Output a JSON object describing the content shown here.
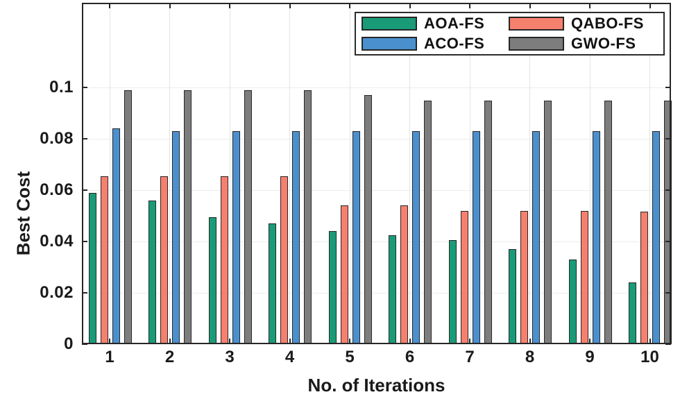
{
  "figure": {
    "background": "#ffffff",
    "axis_color": "#262626",
    "grid_color": "#ececec",
    "bar_edge_color": "#262626"
  },
  "legend": {
    "position": "top-right-inside",
    "items": [
      {
        "label": "AOA-FS",
        "color": "#1A9B77"
      },
      {
        "label": "QABO-FS",
        "color": "#F5806E"
      },
      {
        "label": "ACO-FS",
        "color": "#4B90CE"
      },
      {
        "label": "GWO-FS",
        "color": "#7D7D7D"
      }
    ]
  },
  "chart_data": {
    "type": "bar",
    "title": "",
    "xlabel": "No. of Iterations",
    "ylabel": "Best Cost",
    "categories": [
      "1",
      "2",
      "3",
      "4",
      "5",
      "6",
      "7",
      "8",
      "9",
      "10"
    ],
    "series": [
      {
        "name": "AOA-FS",
        "color": "#1A9B77",
        "values": [
          0.059,
          0.056,
          0.0495,
          0.047,
          0.044,
          0.0425,
          0.0405,
          0.037,
          0.033,
          0.024
        ]
      },
      {
        "name": "QABO-FS",
        "color": "#F5806E",
        "values": [
          0.0655,
          0.0655,
          0.0655,
          0.0655,
          0.054,
          0.054,
          0.052,
          0.052,
          0.052,
          0.0515
        ]
      },
      {
        "name": "ACO-FS",
        "color": "#4B90CE",
        "values": [
          0.084,
          0.083,
          0.083,
          0.083,
          0.083,
          0.083,
          0.083,
          0.083,
          0.083,
          0.083
        ]
      },
      {
        "name": "GWO-FS",
        "color": "#7D7D7D",
        "values": [
          0.099,
          0.099,
          0.099,
          0.099,
          0.097,
          0.095,
          0.095,
          0.095,
          0.095,
          0.095
        ]
      }
    ],
    "ylim": [
      0,
      0.133
    ],
    "yticks": [
      0,
      0.02,
      0.04,
      0.06,
      0.08,
      0.1
    ],
    "ytick_labels": [
      "0",
      "0.02",
      "0.04",
      "0.06",
      "0.08",
      "0.1"
    ],
    "grid": true,
    "legend_position": "top-right-inside"
  }
}
